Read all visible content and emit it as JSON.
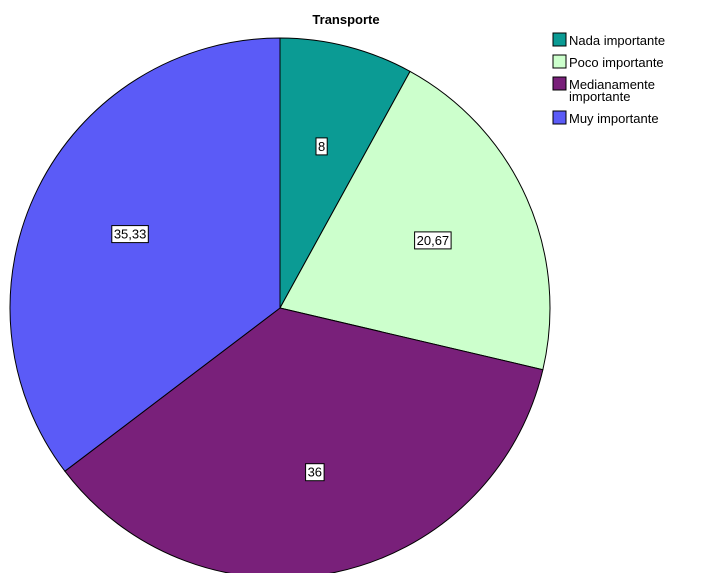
{
  "chart_data": {
    "type": "pie",
    "title": "Transporte",
    "legend_position": "top-right",
    "slices": [
      {
        "label": "Nada importante",
        "legend_lines": [
          "Nada importante"
        ],
        "value": 8,
        "value_label": "8",
        "color": "#0b9b94"
      },
      {
        "label": "Poco importante",
        "legend_lines": [
          "Poco importante"
        ],
        "value": 20.67,
        "value_label": "20,67",
        "color": "#ccffcc"
      },
      {
        "label": "Medianamente importante",
        "legend_lines": [
          "Medianamente",
          "importante"
        ],
        "value": 36,
        "value_label": "36",
        "color": "#79207a"
      },
      {
        "label": "Muy importante",
        "legend_lines": [
          "Muy importante"
        ],
        "value": 35.33,
        "value_label": "35,33",
        "color": "#5b5bf7"
      }
    ]
  }
}
